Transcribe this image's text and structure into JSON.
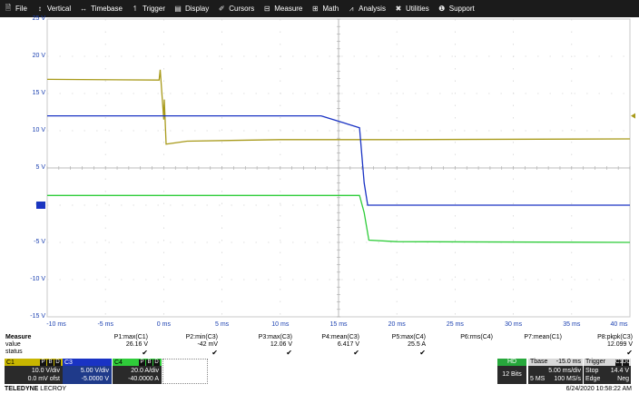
{
  "menu": [
    {
      "label": "File",
      "icon": "file-icon",
      "glyph": "🗎"
    },
    {
      "label": "Vertical",
      "icon": "vertical-icon",
      "glyph": "↕"
    },
    {
      "label": "Timebase",
      "icon": "timebase-icon",
      "glyph": "↔"
    },
    {
      "label": "Trigger",
      "icon": "trigger-icon",
      "glyph": "↿"
    },
    {
      "label": "Display",
      "icon": "display-icon",
      "glyph": "▤"
    },
    {
      "label": "Cursors",
      "icon": "cursors-icon",
      "glyph": "✐"
    },
    {
      "label": "Measure",
      "icon": "measure-icon",
      "glyph": "⊟"
    },
    {
      "label": "Math",
      "icon": "math-icon",
      "glyph": "⊞"
    },
    {
      "label": "Analysis",
      "icon": "analysis-icon",
      "glyph": "⩘"
    },
    {
      "label": "Utilities",
      "icon": "utilities-icon",
      "glyph": "✖"
    },
    {
      "label": "Support",
      "icon": "support-icon",
      "glyph": "❶"
    }
  ],
  "chart_data": {
    "type": "line",
    "x_tick_labels": [
      "-10 ms",
      "-5 ms",
      "0 ms",
      "5 ms",
      "10 ms",
      "15 ms",
      "20 ms",
      "25 ms",
      "30 ms",
      "35 ms",
      "40 ms"
    ],
    "y_tick_labels": [
      "25 V",
      "20 V",
      "15 V",
      "10 V",
      "5 V",
      "0 V",
      "-5 V",
      "-10 V",
      "-15 V"
    ],
    "xlim": [
      -10,
      40
    ],
    "ylim": [
      -15,
      25
    ],
    "grid": true,
    "series": [
      {
        "color": "#a89a1a",
        "x": [
          -10,
          -0.4,
          -0.3,
          0,
          0.05,
          0.2,
          2,
          10,
          20,
          40
        ],
        "y": [
          16.9,
          16.8,
          18.2,
          11.5,
          14.2,
          8.2,
          8.6,
          8.8,
          8.8,
          8.9
        ]
      },
      {
        "color": "#1a33c4",
        "x": [
          -10,
          13.5,
          16.8,
          17.2,
          17.5,
          40
        ],
        "y": [
          12.0,
          12.0,
          10.4,
          3.0,
          0.0,
          0.0
        ]
      },
      {
        "color": "#2fcc3a",
        "x": [
          -10,
          16.8,
          17.2,
          17.6,
          20,
          40
        ],
        "y": [
          1.3,
          1.3,
          -1.0,
          -4.7,
          -4.9,
          -5.0
        ]
      }
    ],
    "markers": [
      {
        "color": "#a89a1a",
        "y": 12.0,
        "side": "right"
      },
      {
        "color": "#1a33c4",
        "y": 0,
        "side": "left",
        "label": "4"
      }
    ]
  },
  "measure": {
    "title": "Measure",
    "row_labels": [
      "value",
      "status"
    ],
    "params": [
      {
        "name": "P1:max(C1)",
        "value": "26.16 V",
        "status": "✔"
      },
      {
        "name": "P2:min(C3)",
        "value": "-42 mV",
        "status": "✔"
      },
      {
        "name": "P3:max(C3)",
        "value": "12.06 V",
        "status": "✔"
      },
      {
        "name": "P4:mean(C3)",
        "value": "6.417 V",
        "status": "✔"
      },
      {
        "name": "P5:max(C4)",
        "value": "25.5 A",
        "status": "✔"
      },
      {
        "name": "P6:rms(C4)",
        "value": "",
        "status": ""
      },
      {
        "name": "P7:mean(C1)",
        "value": "",
        "status": ""
      },
      {
        "name": "P8:pkpk(C3)",
        "value": "12.099 V",
        "status": "✔"
      }
    ]
  },
  "channels": [
    {
      "name": "C1",
      "tags": [
        "P",
        "B",
        "D"
      ],
      "vdiv": "10.0 V/div",
      "offset": "0.0 mV ofst",
      "color": "#c8b600"
    },
    {
      "name": "C3",
      "tags": [],
      "vdiv": "5.00 V/div",
      "offset": "-5.0000 V",
      "color": "#1a33c4"
    },
    {
      "name": "C4",
      "tags": [
        "P",
        "B",
        "D"
      ],
      "vdiv": "20.0 A/div",
      "offset": "-40.0000 A",
      "color": "#2fcc3a"
    }
  ],
  "hd": {
    "label": "HD",
    "bits": "12 Bits"
  },
  "timebase": {
    "label": "Tbase",
    "delay": "-15.0 ms",
    "rate_line1": "5.00 ms/div",
    "samples": "5 MS",
    "rate_line2": "100 MS/s"
  },
  "trigger": {
    "label": "Trigger",
    "tags": [
      "C1",
      "DC"
    ],
    "mode": "Stop",
    "level": "14.4 V",
    "type": "Edge",
    "slope": "Neg"
  },
  "brand": {
    "bold": "TELEDYNE",
    "normal": "LECROY"
  },
  "timestamp": "6/24/2020 10:58:22 AM"
}
